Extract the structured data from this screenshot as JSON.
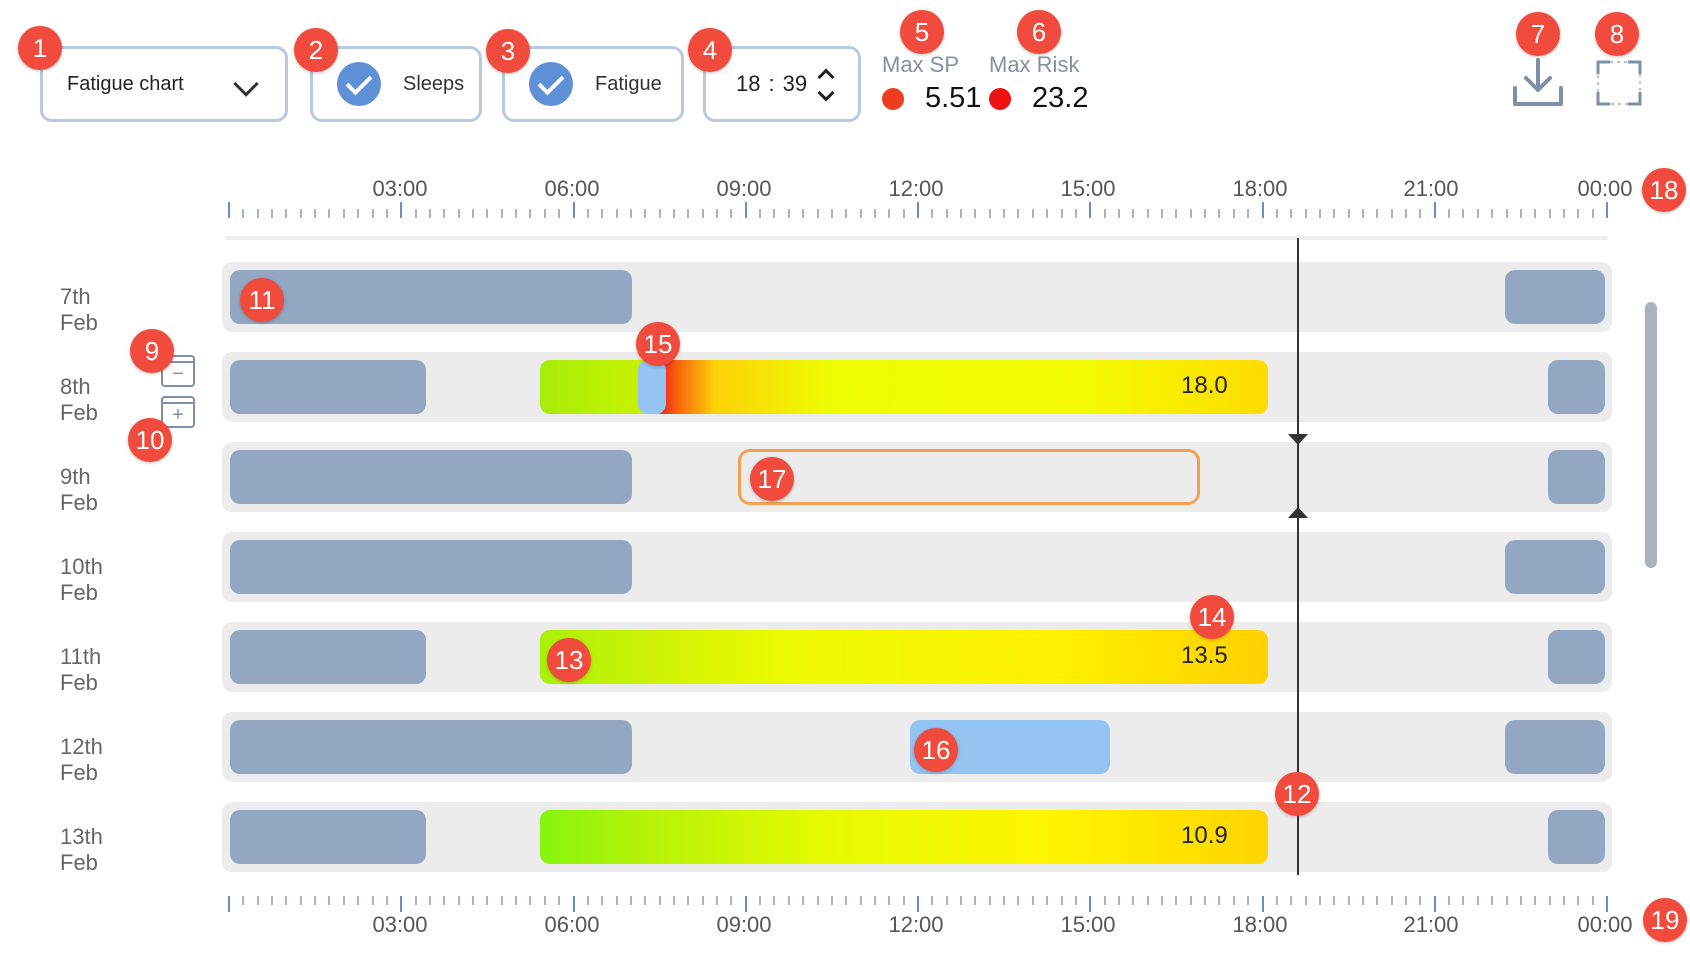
{
  "controls": {
    "chart_select": "Fatigue chart",
    "sleeps_toggle": "Sleeps",
    "fatigue_toggle": "Fatigue",
    "time_hh": "18",
    "time_sep": ":",
    "time_mm": "39"
  },
  "stats": {
    "max_sp_label": "Max SP",
    "max_sp_value": "5.51",
    "max_sp_color": "#f03c1e",
    "max_risk_label": "Max Risk",
    "max_risk_value": "23.2",
    "max_risk_color": "#ee1111"
  },
  "axis": {
    "labels": [
      "03:00",
      "06:00",
      "09:00",
      "12:00",
      "15:00",
      "18:00",
      "21:00",
      "00:00"
    ]
  },
  "rows": [
    {
      "date": "7th Feb",
      "fatigue": ""
    },
    {
      "date": "8th Feb",
      "fatigue": "18.0"
    },
    {
      "date": "9th Feb",
      "fatigue": ""
    },
    {
      "date": "10th Feb",
      "fatigue": ""
    },
    {
      "date": "11th Feb",
      "fatigue": "13.5"
    },
    {
      "date": "12th Feb",
      "fatigue": ""
    },
    {
      "date": "13th Feb",
      "fatigue": "10.9"
    }
  ],
  "calendar": {
    "zoom_out": "−",
    "zoom_in": "+"
  },
  "badges": [
    "1",
    "2",
    "3",
    "4",
    "5",
    "6",
    "7",
    "8",
    "9",
    "10",
    "11",
    "12",
    "13",
    "14",
    "15",
    "16",
    "17",
    "18",
    "19"
  ],
  "colors": {
    "sleep": "#93a6c2",
    "nap": "#93c4f2",
    "selection": "#f2a154",
    "badge": "#f04b3d",
    "accent": "#5f8fd6"
  }
}
